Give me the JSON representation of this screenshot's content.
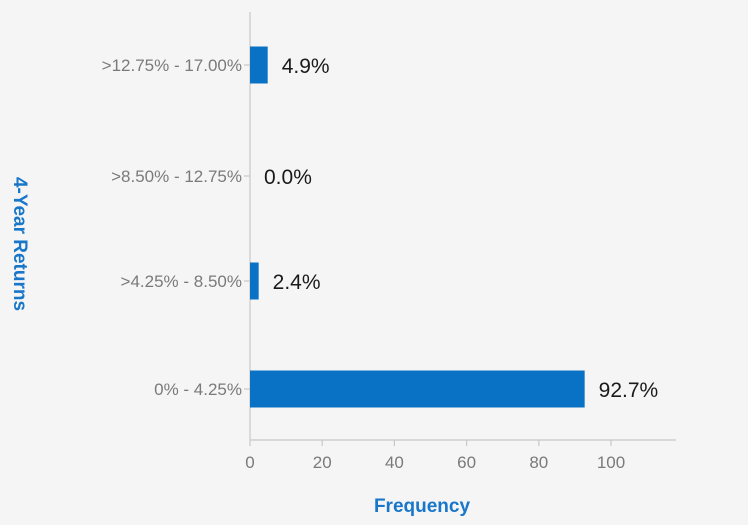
{
  "chart_data": {
    "type": "bar",
    "orientation": "horizontal",
    "categories": [
      ">12.75% - 17.00%",
      ">8.50% - 12.75%",
      ">4.25% - 8.50%",
      "0% - 4.25%"
    ],
    "values": [
      4.9,
      0.0,
      2.4,
      92.7
    ],
    "data_labels": [
      "4.9%",
      "0.0%",
      "2.4%",
      "92.7%"
    ],
    "xlabel": "Frequency",
    "ylabel": "4-Year Returns",
    "xlim": [
      0,
      118
    ],
    "xticks": [
      0,
      20,
      40,
      60,
      80,
      100
    ],
    "xtick_labels": [
      "0",
      "20",
      "40",
      "60",
      "80",
      "100"
    ],
    "grid": false,
    "legend": "none",
    "colors": {
      "bar": "#0a72c4",
      "axis_title": "#1877c9",
      "background": "#f5f5f5"
    }
  }
}
